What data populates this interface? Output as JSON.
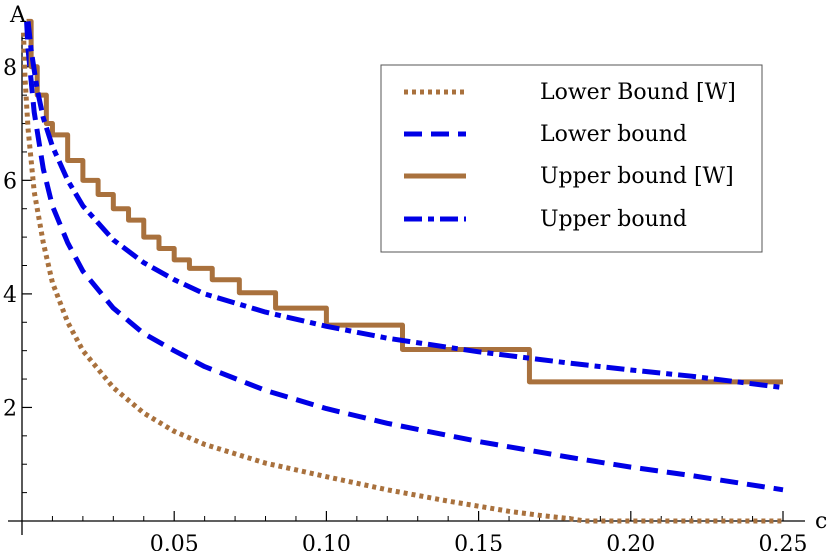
{
  "chart_data": {
    "type": "line",
    "xlabel": "c",
    "ylabel": "A",
    "xlim": [
      0,
      0.25
    ],
    "ylim": [
      0,
      9
    ],
    "xticks": [
      "0.05",
      "0.10",
      "0.15",
      "0.20",
      "0.25"
    ],
    "yticks": [
      "2",
      "4",
      "6",
      "8"
    ],
    "grid": false,
    "legend_position": "top-right",
    "series": [
      {
        "name": "Lower Bound [W]",
        "color": "#a9713d",
        "style": "dotted",
        "x": [
          0.0005,
          0.001,
          0.002,
          0.004,
          0.007,
          0.01,
          0.015,
          0.02,
          0.03,
          0.04,
          0.05,
          0.06,
          0.08,
          0.1,
          0.12,
          0.14,
          0.16,
          0.17,
          0.18,
          0.185,
          0.2,
          0.25
        ],
        "y": [
          8.6,
          7.8,
          6.9,
          5.8,
          4.9,
          4.2,
          3.5,
          3.0,
          2.35,
          1.9,
          1.58,
          1.35,
          1.02,
          0.78,
          0.55,
          0.35,
          0.17,
          0.1,
          0.04,
          0.0,
          0.0,
          0.0
        ]
      },
      {
        "name": "Lower bound",
        "color": "#0000e6",
        "style": "dashed",
        "x": [
          0.0015,
          0.002,
          0.004,
          0.007,
          0.01,
          0.015,
          0.02,
          0.03,
          0.04,
          0.05,
          0.06,
          0.08,
          0.1,
          0.12,
          0.15,
          0.18,
          0.2,
          0.22,
          0.25
        ],
        "y": [
          8.8,
          8.3,
          7.2,
          6.2,
          5.55,
          4.9,
          4.4,
          3.75,
          3.3,
          3.0,
          2.72,
          2.3,
          1.98,
          1.72,
          1.4,
          1.12,
          0.95,
          0.8,
          0.55
        ]
      },
      {
        "name": "Upper bound [W]",
        "color": "#a9713d",
        "style": "solid",
        "x": [
          0.0015,
          0.003,
          0.005,
          0.008,
          0.01,
          0.015,
          0.02,
          0.025,
          0.03,
          0.035,
          0.04,
          0.045,
          0.05,
          0.055,
          0.0625,
          0.0714,
          0.0833,
          0.1,
          0.125,
          0.1667,
          0.25
        ],
        "y": [
          8.8,
          8.0,
          7.5,
          7.0,
          6.8,
          6.35,
          6.0,
          5.75,
          5.5,
          5.3,
          5.0,
          4.8,
          4.6,
          4.45,
          4.25,
          4.02,
          3.75,
          3.45,
          3.02,
          2.45,
          2.45
        ]
      },
      {
        "name": "Upper bound",
        "color": "#0000e6",
        "style": "dashdot",
        "x": [
          0.002,
          0.003,
          0.005,
          0.007,
          0.01,
          0.015,
          0.02,
          0.03,
          0.04,
          0.05,
          0.06,
          0.08,
          0.1,
          0.12,
          0.15,
          0.18,
          0.2,
          0.22,
          0.25
        ],
        "y": [
          8.8,
          8.3,
          7.6,
          7.1,
          6.6,
          6.0,
          5.55,
          4.95,
          4.55,
          4.25,
          4.0,
          3.68,
          3.43,
          3.22,
          2.98,
          2.78,
          2.66,
          2.55,
          2.35
        ]
      }
    ]
  }
}
